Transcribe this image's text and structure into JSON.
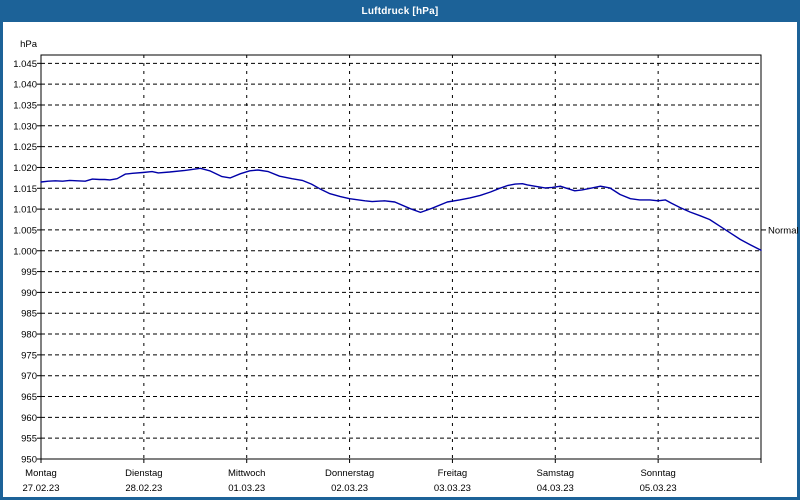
{
  "window": {
    "title": "Luftdruck [hPa]",
    "title_bar_color": "#1c6298",
    "background": "#ffffff"
  },
  "chart_data": {
    "type": "line",
    "title": "Luftdruck [hPa]",
    "unit_label": "hPa",
    "normal_label": "Normal",
    "normal_value_hpa": 1005,
    "ylim": [
      950,
      1047
    ],
    "xlim_days": [
      0,
      7
    ],
    "grid": "dashed",
    "legend_position": "none",
    "curve_color": "#0000a8",
    "y_ticks": [
      {
        "value": 1045,
        "label": "1.045"
      },
      {
        "value": 1040,
        "label": "1.040"
      },
      {
        "value": 1035,
        "label": "1.035"
      },
      {
        "value": 1030,
        "label": "1.030"
      },
      {
        "value": 1025,
        "label": "1.025"
      },
      {
        "value": 1020,
        "label": "1.020"
      },
      {
        "value": 1015,
        "label": "1.015"
      },
      {
        "value": 1010,
        "label": "1.010"
      },
      {
        "value": 1005,
        "label": "1.005"
      },
      {
        "value": 1000,
        "label": "1.000"
      },
      {
        "value": 995,
        "label": "995"
      },
      {
        "value": 990,
        "label": "990"
      },
      {
        "value": 985,
        "label": "985"
      },
      {
        "value": 980,
        "label": "980"
      },
      {
        "value": 975,
        "label": "975"
      },
      {
        "value": 970,
        "label": "970"
      },
      {
        "value": 965,
        "label": "965"
      },
      {
        "value": 960,
        "label": "960"
      },
      {
        "value": 955,
        "label": "955"
      },
      {
        "value": 950,
        "label": "950"
      }
    ],
    "x_days": [
      {
        "name": "Montag",
        "date": "27.02.23"
      },
      {
        "name": "Dienstag",
        "date": "28.02.23"
      },
      {
        "name": "Mittwoch",
        "date": "01.03.23"
      },
      {
        "name": "Donnerstag",
        "date": "02.03.23"
      },
      {
        "name": "Freitag",
        "date": "03.03.23"
      },
      {
        "name": "Samstag",
        "date": "04.03.23"
      },
      {
        "name": "Sonntag",
        "date": "05.03.23"
      }
    ],
    "series": [
      {
        "name": "Luftdruck",
        "unit": "hPa",
        "points": [
          [
            0.0,
            1016.5
          ],
          [
            0.07,
            1016.7
          ],
          [
            0.14,
            1016.8
          ],
          [
            0.21,
            1016.7
          ],
          [
            0.28,
            1016.9
          ],
          [
            0.35,
            1016.8
          ],
          [
            0.43,
            1016.7
          ],
          [
            0.5,
            1017.2
          ],
          [
            0.57,
            1017.1
          ],
          [
            0.62,
            1017.1
          ],
          [
            0.67,
            1017.0
          ],
          [
            0.74,
            1017.3
          ],
          [
            0.82,
            1018.4
          ],
          [
            0.89,
            1018.6
          ],
          [
            0.99,
            1018.8
          ],
          [
            1.08,
            1019.0
          ],
          [
            1.14,
            1018.7
          ],
          [
            1.25,
            1018.9
          ],
          [
            1.4,
            1019.3
          ],
          [
            1.55,
            1019.8
          ],
          [
            1.64,
            1019.2
          ],
          [
            1.76,
            1017.8
          ],
          [
            1.84,
            1017.5
          ],
          [
            1.94,
            1018.5
          ],
          [
            2.03,
            1019.2
          ],
          [
            2.11,
            1019.4
          ],
          [
            2.21,
            1019.0
          ],
          [
            2.32,
            1017.9
          ],
          [
            2.44,
            1017.3
          ],
          [
            2.54,
            1016.9
          ],
          [
            2.63,
            1016.0
          ],
          [
            2.71,
            1014.9
          ],
          [
            2.81,
            1013.7
          ],
          [
            2.91,
            1013.0
          ],
          [
            3.0,
            1012.5
          ],
          [
            3.15,
            1012.0
          ],
          [
            3.22,
            1011.8
          ],
          [
            3.34,
            1012.0
          ],
          [
            3.44,
            1011.7
          ],
          [
            3.59,
            1010.1
          ],
          [
            3.69,
            1009.2
          ],
          [
            3.8,
            1010.2
          ],
          [
            3.95,
            1011.7
          ],
          [
            4.07,
            1012.2
          ],
          [
            4.17,
            1012.7
          ],
          [
            4.27,
            1013.3
          ],
          [
            4.37,
            1014.1
          ],
          [
            4.46,
            1015.0
          ],
          [
            4.54,
            1015.7
          ],
          [
            4.61,
            1016.0
          ],
          [
            4.68,
            1016.1
          ],
          [
            4.73,
            1015.8
          ],
          [
            4.8,
            1015.5
          ],
          [
            4.9,
            1015.1
          ],
          [
            4.97,
            1015.2
          ],
          [
            5.05,
            1015.5
          ],
          [
            5.1,
            1015.1
          ],
          [
            5.19,
            1014.4
          ],
          [
            5.26,
            1014.6
          ],
          [
            5.34,
            1015.0
          ],
          [
            5.44,
            1015.5
          ],
          [
            5.53,
            1015.1
          ],
          [
            5.63,
            1013.5
          ],
          [
            5.73,
            1012.5
          ],
          [
            5.82,
            1012.2
          ],
          [
            5.92,
            1012.2
          ],
          [
            6.0,
            1012.0
          ],
          [
            6.07,
            1012.2
          ],
          [
            6.13,
            1011.4
          ],
          [
            6.21,
            1010.4
          ],
          [
            6.31,
            1009.3
          ],
          [
            6.41,
            1008.4
          ],
          [
            6.5,
            1007.5
          ],
          [
            6.6,
            1005.9
          ],
          [
            6.7,
            1004.3
          ],
          [
            6.8,
            1002.7
          ],
          [
            6.89,
            1001.5
          ],
          [
            7.0,
            1000.1
          ]
        ]
      }
    ]
  }
}
